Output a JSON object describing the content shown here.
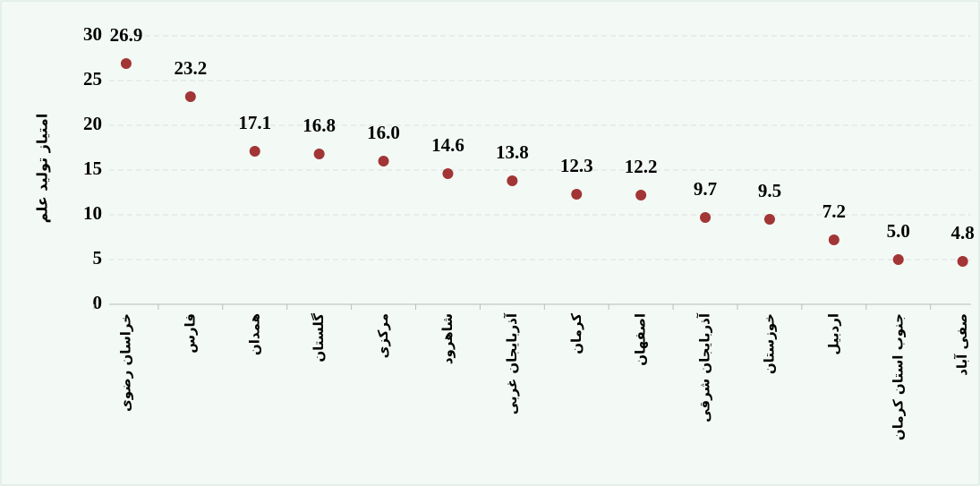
{
  "chart_data": {
    "type": "scatter",
    "y_label": "امتیاز تولید علم",
    "categories": [
      "خراسان رضوی",
      "فارس",
      "همدان",
      "گلستان",
      "مرکزی",
      "شاهرود",
      "آذربایجان غربی",
      "کرمان",
      "اصفهان",
      "آذربایجان شرقی",
      "خوزستان",
      "اردبیل",
      "جنوب استان کرمان",
      "صفی آباد"
    ],
    "values": [
      26.9,
      23.2,
      17.1,
      16.8,
      16.0,
      14.6,
      13.8,
      12.3,
      12.2,
      9.7,
      9.5,
      7.2,
      5.0,
      4.8
    ],
    "value_labels": [
      "26.9",
      "23.2",
      "17.1",
      "16.8",
      "16.0",
      "14.6",
      "13.8",
      "12.3",
      "12.2",
      "9.7",
      "9.5",
      "7.2",
      "5.0",
      "4.8"
    ],
    "color": "#a23535",
    "ylim": [
      0,
      30
    ],
    "yticks": [
      0,
      5,
      10,
      15,
      20,
      25,
      30
    ],
    "grid": true
  }
}
